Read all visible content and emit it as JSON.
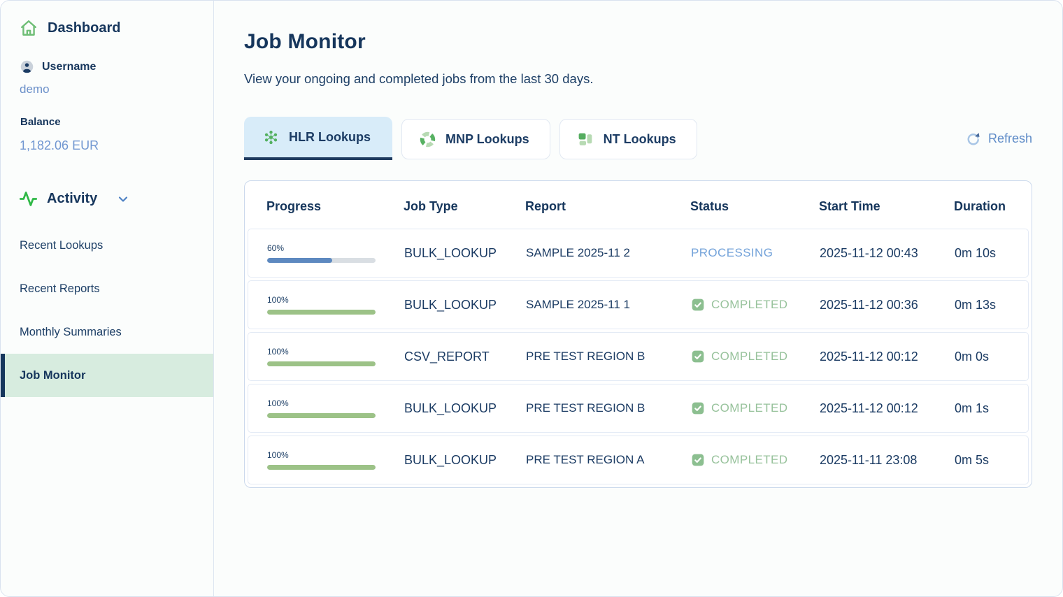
{
  "sidebar": {
    "dashboard_label": "Dashboard",
    "username_label": "Username",
    "username_value": "demo",
    "balance_label": "Balance",
    "balance_value": "1,182.06 EUR",
    "activity_label": "Activity",
    "items": [
      {
        "label": "Recent Lookups",
        "active": false
      },
      {
        "label": "Recent Reports",
        "active": false
      },
      {
        "label": "Monthly Summaries",
        "active": false
      },
      {
        "label": "Job Monitor",
        "active": true
      }
    ]
  },
  "main": {
    "title": "Job Monitor",
    "subtitle": "View your ongoing and completed jobs from the last 30 days.",
    "tabs": [
      {
        "label": "HLR Lookups",
        "icon": "hlr-dots-icon",
        "active": true
      },
      {
        "label": "MNP Lookups",
        "icon": "mnp-shutter-icon",
        "active": false
      },
      {
        "label": "NT Lookups",
        "icon": "nt-blocks-icon",
        "active": false
      }
    ],
    "refresh_label": "Refresh",
    "table": {
      "columns": [
        "Progress",
        "Job Type",
        "Report",
        "Status",
        "Start Time",
        "Duration"
      ],
      "rows": [
        {
          "progress_label": "60%",
          "progress_value": 60,
          "progress_color": "blue",
          "job_type": "BULK_LOOKUP",
          "report": "SAMPLE 2025-11 2",
          "status": "PROCESSING",
          "status_kind": "processing",
          "start_time": "2025-11-12 00:43",
          "duration": "0m 10s"
        },
        {
          "progress_label": "100%",
          "progress_value": 100,
          "progress_color": "green",
          "job_type": "BULK_LOOKUP",
          "report": "SAMPLE 2025-11 1",
          "status": "COMPLETED",
          "status_kind": "completed",
          "start_time": "2025-11-12 00:36",
          "duration": "0m 13s"
        },
        {
          "progress_label": "100%",
          "progress_value": 100,
          "progress_color": "green",
          "job_type": "CSV_REPORT",
          "report": "PRE TEST REGION B",
          "status": "COMPLETED",
          "status_kind": "completed",
          "start_time": "2025-11-12 00:12",
          "duration": "0m 0s"
        },
        {
          "progress_label": "100%",
          "progress_value": 100,
          "progress_color": "green",
          "job_type": "BULK_LOOKUP",
          "report": "PRE TEST REGION B",
          "status": "COMPLETED",
          "status_kind": "completed",
          "start_time": "2025-11-12 00:12",
          "duration": "0m 1s"
        },
        {
          "progress_label": "100%",
          "progress_value": 100,
          "progress_color": "green",
          "job_type": "BULK_LOOKUP",
          "report": "PRE TEST REGION A",
          "status": "COMPLETED",
          "status_kind": "completed",
          "start_time": "2025-11-11 23:08",
          "duration": "0m 5s"
        }
      ]
    }
  },
  "colors": {
    "navy": "#16365c",
    "link_blue": "#5e8bc7",
    "light_blue_text": "#6b90c9",
    "processing_blue": "#74a3da",
    "completed_green": "#97c29b",
    "check_green": "#8cbf90",
    "progress_blue": "#5d89c0",
    "progress_green": "#9cc287",
    "active_tab_bg": "#d8ecf9",
    "active_sidebar_bg": "#d7ecdf",
    "icon_green": "#53b060"
  }
}
